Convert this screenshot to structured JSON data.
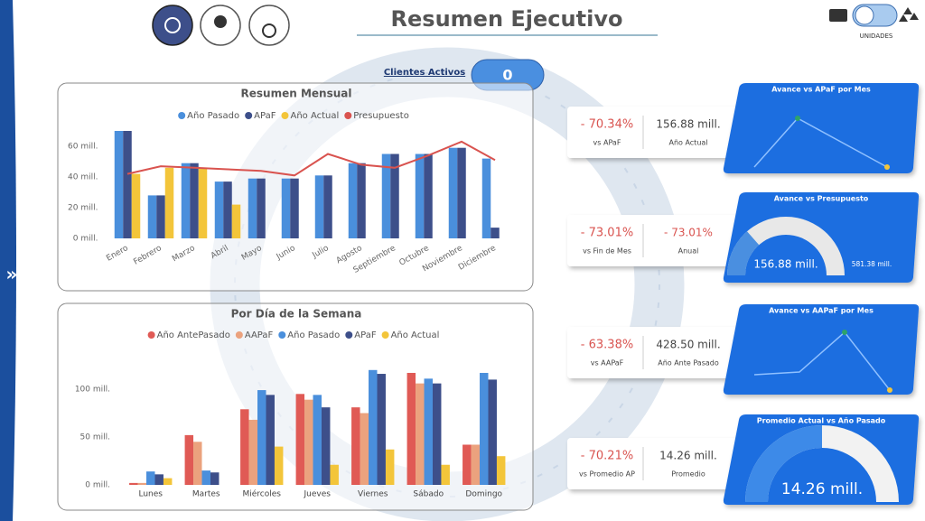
{
  "header": {
    "title": "Resumen Ejecutivo",
    "toggle_label": "UNIDADES"
  },
  "clientes": {
    "label": "Clientes Activos",
    "value": "0"
  },
  "chart_data": [
    {
      "type": "bar",
      "title": "Resumen Mensual",
      "categories": [
        "Enero",
        "Febrero",
        "Marzo",
        "Abril",
        "Mayo",
        "Junio",
        "Julio",
        "Agosto",
        "Septiembre",
        "Octubre",
        "Noviembre",
        "Diciembre"
      ],
      "series": [
        {
          "name": "Año Pasado",
          "color": "#4a8fdc",
          "values": [
            70,
            28,
            49,
            37,
            39,
            39,
            41,
            49,
            55,
            55,
            59,
            52
          ]
        },
        {
          "name": "APaF",
          "color": "#3d4f8a",
          "values": [
            70,
            28,
            49,
            37,
            39,
            39,
            41,
            49,
            55,
            55,
            59,
            7
          ]
        },
        {
          "name": "Año Actual",
          "color": "#f3c53a",
          "values": [
            42,
            46,
            46,
            22,
            null,
            null,
            null,
            null,
            null,
            null,
            null,
            null
          ]
        },
        {
          "name": "Presupuesto",
          "color": "#d9534f",
          "type": "line",
          "values": [
            42,
            47,
            46,
            45,
            44,
            41,
            55,
            48,
            46,
            54,
            63,
            51
          ]
        }
      ],
      "ylim": [
        0,
        72
      ],
      "yticks": [
        {
          "value": 0,
          "label": "0 mill."
        },
        {
          "value": 20,
          "label": "20 mill."
        },
        {
          "value": 40,
          "label": "40 mill."
        },
        {
          "value": 60,
          "label": "60 mill."
        }
      ],
      "grid": false,
      "legend": "top"
    },
    {
      "type": "bar",
      "title": "Por Día de la Semana",
      "categories": [
        "Lunes",
        "Martes",
        "Miércoles",
        "Jueves",
        "Viernes",
        "Sábado",
        "Domingo"
      ],
      "series": [
        {
          "name": "Año AntePasado",
          "color": "#e05a55",
          "values": [
            2,
            52,
            79,
            95,
            81,
            117,
            42
          ]
        },
        {
          "name": "AAPaF",
          "color": "#eba27e",
          "values": [
            2,
            45,
            68,
            89,
            75,
            106,
            42
          ]
        },
        {
          "name": "Año Pasado",
          "color": "#4a8fdc",
          "values": [
            14,
            15,
            99,
            94,
            120,
            111,
            117
          ]
        },
        {
          "name": "APaF",
          "color": "#3d4f8a",
          "values": [
            11,
            13,
            94,
            81,
            116,
            106,
            110
          ]
        },
        {
          "name": "Año Actual",
          "color": "#f3c53a",
          "values": [
            7,
            null,
            40,
            21,
            37,
            21,
            30
          ]
        }
      ],
      "ylim": [
        0,
        125
      ],
      "yticks": [
        {
          "value": 0,
          "label": "0 mill."
        },
        {
          "value": 50,
          "label": "50 mill."
        },
        {
          "value": 100,
          "label": "100 mill."
        }
      ],
      "grid": false,
      "legend": "top"
    }
  ],
  "kpis": [
    {
      "pct": "- 70.34%",
      "pct_label": "vs APaF",
      "value": "156.88 mill.",
      "value_label": "Año Actual",
      "panel_title": "Avance vs APaF por Mes"
    },
    {
      "pct": "- 73.01%",
      "pct_label": "vs Fin de Mes",
      "value": "- 73.01%",
      "value_label": "Anual",
      "panel_title": "Avance vs Presupuesto",
      "gauge": {
        "value": 156.88,
        "value_label": "156.88 mill.",
        "max": 581.38,
        "max_label": "581.38 mill."
      }
    },
    {
      "pct": "- 63.38%",
      "pct_label": "vs AAPaF",
      "value": "428.50 mill.",
      "value_label": "Año Ante Pasado",
      "panel_title": "Avance vs AAPaF por Mes"
    },
    {
      "pct": "- 70.21%",
      "pct_label": "vs Promedio AP",
      "value": "14.26 mill.",
      "value_label": "Promedio",
      "panel_title": "Promedio Actual vs Año Pasado",
      "gauge": {
        "value": 14.26,
        "value_label": "14.26 mill.",
        "max": 28.52
      }
    }
  ]
}
